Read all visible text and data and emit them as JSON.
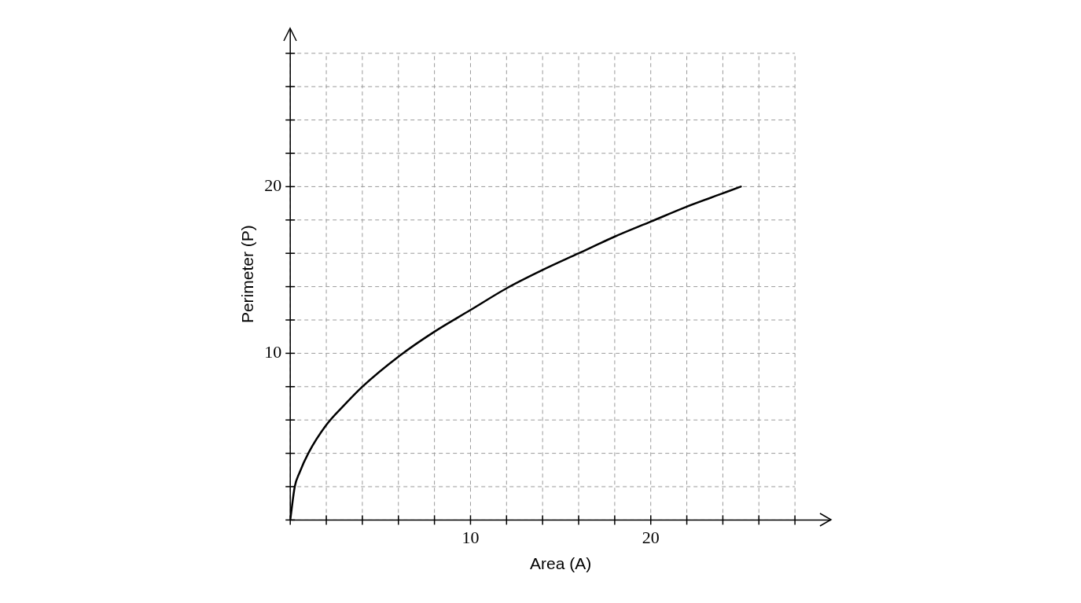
{
  "chart_data": {
    "type": "line",
    "xlabel": "Area (A)",
    "ylabel": "Perimeter (P)",
    "x": [
      0,
      0.25,
      0.5,
      1,
      2,
      3,
      4,
      6,
      8,
      10,
      12,
      14,
      16,
      18,
      20,
      22,
      24,
      25
    ],
    "series": [
      {
        "color": "#000000",
        "values": [
          0,
          2,
          2.8,
          4,
          5.7,
          6.9,
          8,
          9.8,
          11.3,
          12.6,
          13.9,
          15,
          16,
          17,
          17.9,
          18.8,
          19.6,
          20
        ]
      }
    ],
    "xlim": [
      0,
      30
    ],
    "ylim": [
      0,
      29.5
    ],
    "xticks": [
      {
        "value": 0,
        "label": null
      },
      {
        "value": 2,
        "label": null
      },
      {
        "value": 4,
        "label": null
      },
      {
        "value": 6,
        "label": null
      },
      {
        "value": 8,
        "label": null
      },
      10,
      {
        "value": 12,
        "label": null
      },
      {
        "value": 14,
        "label": null
      },
      {
        "value": 16,
        "label": null
      },
      {
        "value": 18,
        "label": null
      },
      20,
      {
        "value": 22,
        "label": null
      },
      {
        "value": 24,
        "label": null
      },
      {
        "value": 26,
        "label": null
      },
      {
        "value": 28,
        "label": null
      }
    ],
    "yticks": [
      {
        "value": 0,
        "label": null
      },
      {
        "value": 2,
        "label": null
      },
      {
        "value": 4,
        "label": null
      },
      {
        "value": 6,
        "label": null
      },
      {
        "value": 8,
        "label": null
      },
      10,
      {
        "value": 12,
        "label": null
      },
      {
        "value": 14,
        "label": null
      },
      {
        "value": 16,
        "label": null
      },
      {
        "value": 18,
        "label": null
      },
      20,
      {
        "value": 22,
        "label": null
      },
      {
        "value": 24,
        "label": null
      },
      {
        "value": 26,
        "label": null
      },
      {
        "value": 28,
        "label": null
      }
    ],
    "grid": true,
    "marker": "none",
    "line_style": "solid",
    "legend": false
  }
}
